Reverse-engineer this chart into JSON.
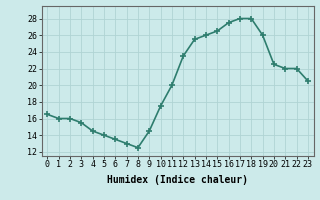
{
  "x": [
    0,
    1,
    2,
    3,
    4,
    5,
    6,
    7,
    8,
    9,
    10,
    11,
    12,
    13,
    14,
    15,
    16,
    17,
    18,
    19,
    20,
    21,
    22,
    23
  ],
  "y": [
    16.5,
    16.0,
    16.0,
    15.5,
    14.5,
    14.0,
    13.5,
    13.0,
    12.5,
    14.5,
    17.5,
    20.0,
    23.5,
    25.5,
    26.0,
    26.5,
    27.5,
    28.0,
    28.0,
    26.0,
    22.5,
    22.0,
    22.0,
    20.5
  ],
  "line_color": "#2e7d6e",
  "marker": "+",
  "bg_color": "#cceaea",
  "grid_color": "#b0d4d4",
  "xlabel": "Humidex (Indice chaleur)",
  "xlim": [
    -0.5,
    23.5
  ],
  "ylim": [
    11.5,
    29.5
  ],
  "yticks": [
    12,
    14,
    16,
    18,
    20,
    22,
    24,
    26,
    28
  ],
  "xtick_labels": [
    "0",
    "1",
    "2",
    "3",
    "4",
    "5",
    "6",
    "7",
    "8",
    "9",
    "10",
    "11",
    "12",
    "13",
    "14",
    "15",
    "16",
    "17",
    "18",
    "19",
    "20",
    "21",
    "22",
    "23"
  ],
  "xlabel_fontsize": 7,
  "tick_fontsize": 6,
  "linewidth": 1.2,
  "markersize": 4
}
